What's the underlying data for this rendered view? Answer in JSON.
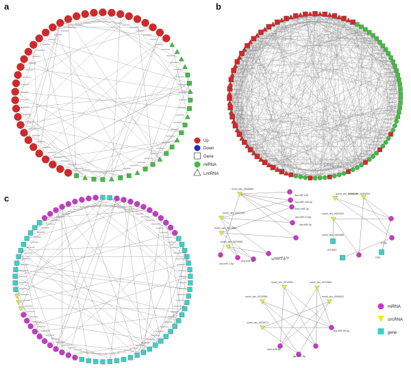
{
  "figure": {
    "panels": [
      {
        "letter": "a"
      },
      {
        "letter": "b"
      },
      {
        "letter": "c"
      }
    ],
    "legend_ab": [
      {
        "label": "Up",
        "shape": "circle",
        "color": "#d62728"
      },
      {
        "label": "Down",
        "shape": "circle",
        "color": "#1f2fb5"
      },
      {
        "label": "Gene",
        "shape": "square-outline",
        "color": "#555555"
      },
      {
        "label": "miRNA",
        "shape": "circle",
        "color": "#3fbf3f"
      },
      {
        "label": "LncRNA",
        "shape": "triangle-outline",
        "color": "#555555"
      }
    ],
    "legend_c": [
      {
        "label": "miRNA",
        "shape": "circle",
        "color": "#c837c8"
      },
      {
        "label": "circRNA",
        "shape": "v",
        "color": "#e8e83a"
      },
      {
        "label": "gene",
        "shape": "square",
        "color": "#3ad0c8"
      }
    ],
    "colors": {
      "up_red": "#d62728",
      "mirna_green": "#3fbf3f",
      "mirna_purple": "#c837c8",
      "circrna_yellow": "#e8e83a",
      "gene_cyan": "#3ad0c8",
      "edge_gray": "#8a8a8a"
    },
    "network_c_subgraph_labels": [
      "novel_circ_0005696",
      "novel_circ_0021720",
      "novel_circ_0021680",
      "novel_circ_0021956",
      "novel_circ_0002928",
      "novel_circ_0003004",
      "novel_circ_0002922",
      "novel_circ_0002980",
      "novel_circ_0012931",
      "novel_circ_0012839",
      "novel_circ_0012558",
      "novel_circ_0020972",
      "novel_circ_0000612",
      "fsa-miR-199-3p",
      "dre-miR-21-5p",
      "cfa-miR-3p",
      "ocu-miR-1-5p",
      "aca-miR-3p",
      "oar-miR-1-5p",
      "fsa-miR-148",
      "mmu-miR-3p",
      "tgu-miR-1-5p",
      "ATP5G2",
      "CD3",
      "PTB2",
      "fsa-miR-99-3p",
      "mml-miR-5p",
      "tgu-miR-5p"
    ]
  }
}
